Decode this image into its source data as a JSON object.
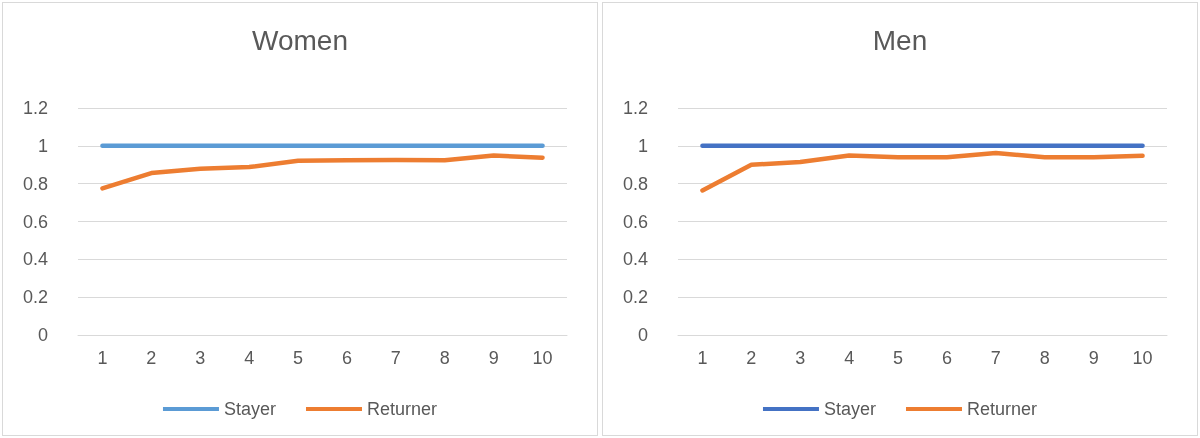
{
  "chart_data": [
    {
      "type": "line",
      "title": "Women",
      "categories": [
        "1",
        "2",
        "3",
        "4",
        "5",
        "6",
        "7",
        "8",
        "9",
        "10"
      ],
      "ylim": [
        0,
        1.2
      ],
      "yticks": [
        0,
        0.2,
        0.4,
        0.6,
        0.8,
        1,
        1.2
      ],
      "grid": "y",
      "legend": "bottom",
      "marker": "none",
      "series": [
        {
          "name": "Stayer",
          "color": "#5b9bd5",
          "values": [
            1,
            1,
            1,
            1,
            1,
            1,
            1,
            1,
            1,
            1
          ]
        },
        {
          "name": "Returner",
          "color": "#ed7d31",
          "values": [
            0.775,
            0.856,
            0.879,
            0.888,
            0.921,
            0.924,
            0.925,
            0.924,
            0.949,
            0.937
          ]
        }
      ]
    },
    {
      "type": "line",
      "title": "Men",
      "categories": [
        "1",
        "2",
        "3",
        "4",
        "5",
        "6",
        "7",
        "8",
        "9",
        "10"
      ],
      "ylim": [
        0,
        1.2
      ],
      "yticks": [
        0,
        0.2,
        0.4,
        0.6,
        0.8,
        1,
        1.2
      ],
      "grid": "y",
      "legend": "bottom",
      "marker": "none",
      "series": [
        {
          "name": "Stayer",
          "color": "#4472c4",
          "values": [
            1,
            1,
            1,
            1,
            1,
            1,
            1,
            1,
            1,
            1
          ]
        },
        {
          "name": "Returner",
          "color": "#ed7d31",
          "values": [
            0.764,
            0.9,
            0.915,
            0.949,
            0.94,
            0.94,
            0.962,
            0.94,
            0.94,
            0.947
          ]
        }
      ]
    }
  ]
}
